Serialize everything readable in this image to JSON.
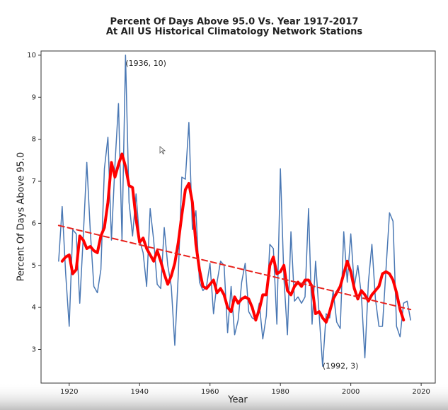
{
  "chart_data": {
    "type": "line",
    "title": "Percent Of Days Above 95.0 Vs. Year 1917-2017",
    "subtitle": "At All US Historical Climatology Network Stations",
    "x_label": "Year",
    "y_label": "Percent Of Days Above 95.0",
    "xlim": [
      1912,
      2024
    ],
    "ylim": [
      2.2,
      10.1
    ],
    "xticks": [
      1920,
      1940,
      1960,
      1980,
      2000,
      2020
    ],
    "yticks": [
      3,
      4,
      5,
      6,
      7,
      8,
      9,
      10
    ],
    "series": [
      {
        "color": "#4a78b4",
        "width": 1.5,
        "dashed": false,
        "x": [
          1917,
          1918,
          1919,
          1920,
          1921,
          1922,
          1923,
          1924,
          1925,
          1926,
          1927,
          1928,
          1929,
          1930,
          1931,
          1932,
          1933,
          1934,
          1935,
          1936,
          1937,
          1938,
          1939,
          1940,
          1941,
          1942,
          1943,
          1944,
          1945,
          1946,
          1947,
          1948,
          1949,
          1950,
          1951,
          1952,
          1953,
          1954,
          1955,
          1956,
          1957,
          1958,
          1959,
          1960,
          1961,
          1962,
          1963,
          1964,
          1965,
          1966,
          1967,
          1968,
          1969,
          1970,
          1971,
          1972,
          1973,
          1974,
          1975,
          1976,
          1977,
          1978,
          1979,
          1980,
          1981,
          1982,
          1983,
          1984,
          1985,
          1986,
          1987,
          1988,
          1989,
          1990,
          1991,
          1992,
          1993,
          1994,
          1995,
          1996,
          1997,
          1998,
          1999,
          2000,
          2001,
          2002,
          2003,
          2004,
          2005,
          2006,
          2007,
          2008,
          2009,
          2010,
          2011,
          2012,
          2013,
          2014,
          2015,
          2016,
          2017
        ],
        "values": [
          5.1,
          6.4,
          4.8,
          3.55,
          5.85,
          5.75,
          4.1,
          5.7,
          7.45,
          5.8,
          4.5,
          4.35,
          4.9,
          7.3,
          8.05,
          5.6,
          7.4,
          8.85,
          5.6,
          10,
          6.5,
          5.7,
          6.7,
          5.6,
          5.3,
          4.5,
          6.35,
          5.6,
          4.55,
          4.45,
          5.9,
          5.0,
          4.5,
          3.1,
          4.8,
          7.1,
          7.05,
          8.4,
          5.85,
          6.3,
          4.6,
          4.4,
          4.5,
          5.05,
          3.85,
          4.6,
          5.1,
          5.0,
          3.4,
          4.5,
          3.35,
          3.7,
          4.6,
          5.05,
          3.9,
          3.75,
          3.7,
          4.1,
          3.25,
          3.8,
          5.5,
          5.4,
          3.6,
          7.3,
          4.7,
          3.35,
          5.8,
          4.15,
          4.25,
          4.1,
          4.25,
          6.35,
          3.6,
          5.1,
          3.85,
          2.6,
          3.85,
          3.75,
          4.4,
          3.65,
          3.5,
          5.8,
          4.6,
          5.75,
          4.5,
          5.0,
          4.3,
          2.8,
          4.6,
          5.5,
          4.2,
          3.55,
          3.55,
          4.9,
          6.25,
          6.05,
          3.55,
          3.3,
          4.1,
          4.15,
          3.7
        ]
      },
      {
        "color": "#ff0000",
        "width": 4,
        "dashed": false,
        "x": [
          1918,
          1919,
          1920,
          1921,
          1922,
          1923,
          1924,
          1925,
          1926,
          1927,
          1928,
          1929,
          1930,
          1931,
          1932,
          1933,
          1934,
          1935,
          1936,
          1937,
          1938,
          1939,
          1940,
          1941,
          1942,
          1943,
          1944,
          1945,
          1946,
          1947,
          1948,
          1949,
          1950,
          1951,
          1952,
          1953,
          1954,
          1955,
          1956,
          1957,
          1958,
          1959,
          1960,
          1961,
          1962,
          1963,
          1964,
          1965,
          1966,
          1967,
          1968,
          1969,
          1970,
          1971,
          1972,
          1973,
          1974,
          1975,
          1976,
          1977,
          1978,
          1979,
          1980,
          1981,
          1982,
          1983,
          1984,
          1985,
          1986,
          1987,
          1988,
          1989,
          1990,
          1991,
          1992,
          1993,
          1994,
          1995,
          1996,
          1997,
          1998,
          1999,
          2000,
          2001,
          2002,
          2003,
          2004,
          2005,
          2006,
          2007,
          2008,
          2009,
          2010,
          2011,
          2012,
          2013,
          2014,
          2015
        ],
        "values": [
          5.1,
          5.2,
          5.25,
          4.8,
          4.9,
          5.7,
          5.6,
          5.4,
          5.45,
          5.35,
          5.3,
          5.7,
          5.9,
          6.5,
          7.45,
          7.1,
          7.4,
          7.65,
          7.35,
          6.9,
          6.85,
          6.1,
          5.55,
          5.65,
          5.4,
          5.25,
          5.1,
          5.35,
          5.1,
          4.8,
          4.55,
          4.75,
          5.05,
          5.55,
          6.2,
          6.8,
          6.95,
          6.5,
          5.5,
          4.9,
          4.5,
          4.45,
          4.55,
          4.65,
          4.35,
          4.45,
          4.3,
          4.0,
          3.9,
          4.25,
          4.1,
          4.2,
          4.25,
          4.2,
          4.0,
          3.7,
          3.95,
          4.3,
          4.3,
          5.0,
          5.2,
          4.8,
          4.85,
          5.0,
          4.4,
          4.3,
          4.5,
          4.6,
          4.5,
          4.65,
          4.65,
          4.5,
          3.85,
          3.9,
          3.75,
          3.65,
          3.9,
          4.2,
          4.35,
          4.5,
          4.8,
          5.1,
          4.85,
          4.45,
          4.2,
          4.4,
          4.3,
          4.15,
          4.3,
          4.4,
          4.5,
          4.8,
          4.85,
          4.8,
          4.65,
          4.35,
          3.95,
          3.7
        ]
      },
      {
        "color": "#e8231e",
        "width": 2,
        "dashed": true,
        "x": [
          1917,
          2017
        ],
        "values": [
          5.95,
          3.95
        ]
      }
    ],
    "annotations": [
      {
        "text": "(1936, 10)",
        "x": 1936,
        "y": 9.8
      },
      {
        "text": "(1992, 3)",
        "x": 1992,
        "y": 2.6
      }
    ]
  }
}
